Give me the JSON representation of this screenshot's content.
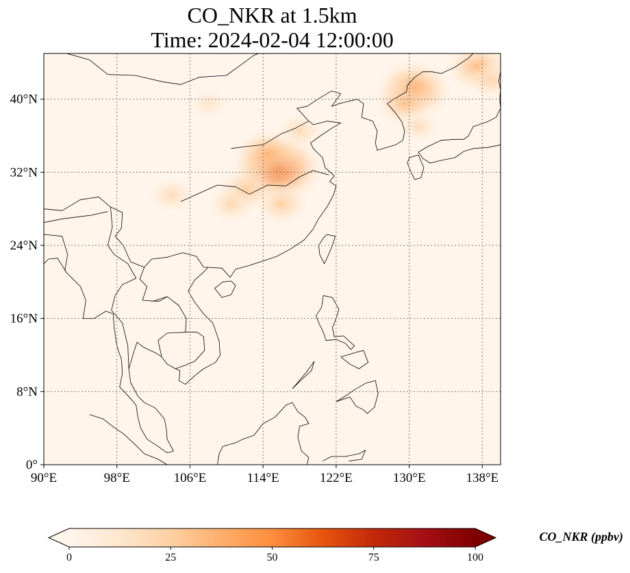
{
  "title": {
    "line1": "CO_NKR at 1.5km",
    "line2": "Time: 2024-02-04 12:00:00"
  },
  "map": {
    "projection": "PlateCarree",
    "lon_range": [
      90,
      140
    ],
    "lat_range": [
      0,
      45
    ],
    "gridlines": "dotted grey",
    "background_color": "#fff5eb",
    "coastline_color": "#000000",
    "x_ticks": [
      {
        "value": 90,
        "label": "90°E"
      },
      {
        "value": 98,
        "label": "98°E"
      },
      {
        "value": 106,
        "label": "106°E"
      },
      {
        "value": 114,
        "label": "114°E"
      },
      {
        "value": 122,
        "label": "122°E"
      },
      {
        "value": 130,
        "label": "130°E"
      },
      {
        "value": 138,
        "label": "138°E"
      }
    ],
    "y_ticks": [
      {
        "value": 0,
        "label": "0°"
      },
      {
        "value": 8,
        "label": "8°N"
      },
      {
        "value": 16,
        "label": "16°N"
      },
      {
        "value": 24,
        "label": "24°N"
      },
      {
        "value": 32,
        "label": "32°N"
      },
      {
        "value": 40,
        "label": "40°N"
      }
    ],
    "plumes": [
      {
        "lon": 115.5,
        "lat": 32.4,
        "value": 58
      },
      {
        "lon": 114.5,
        "lat": 34.0,
        "value": 35
      },
      {
        "lon": 112.0,
        "lat": 30.0,
        "value": 28
      },
      {
        "lon": 116.0,
        "lat": 28.5,
        "value": 26
      },
      {
        "lon": 110.5,
        "lat": 28.5,
        "value": 22
      },
      {
        "lon": 104.0,
        "lat": 29.5,
        "value": 20
      },
      {
        "lon": 130.5,
        "lat": 41.0,
        "value": 45
      },
      {
        "lon": 129.5,
        "lat": 39.5,
        "value": 30
      },
      {
        "lon": 131.0,
        "lat": 37.0,
        "value": 18
      },
      {
        "lon": 137.5,
        "lat": 43.5,
        "value": 35
      },
      {
        "lon": 139.0,
        "lat": 42.0,
        "value": 22
      },
      {
        "lon": 108.0,
        "lat": 39.5,
        "value": 14
      },
      {
        "lon": 118.0,
        "lat": 36.5,
        "value": 20
      }
    ]
  },
  "colorbar": {
    "label": "CO_NKR (ppbv)",
    "colormap": "OrRd",
    "range": [
      0,
      100
    ],
    "extend": "both",
    "ticks": [
      {
        "value": 0,
        "label": "0"
      },
      {
        "value": 25,
        "label": "25"
      },
      {
        "value": 50,
        "label": "50"
      },
      {
        "value": 75,
        "label": "75"
      },
      {
        "value": 100,
        "label": "100"
      }
    ],
    "stops": [
      "#fff5eb",
      "#fee6ce",
      "#fdd0a2",
      "#fdae6b",
      "#fd8d3c",
      "#e6550d",
      "#c2290a",
      "#a50f15",
      "#7f0000"
    ]
  }
}
